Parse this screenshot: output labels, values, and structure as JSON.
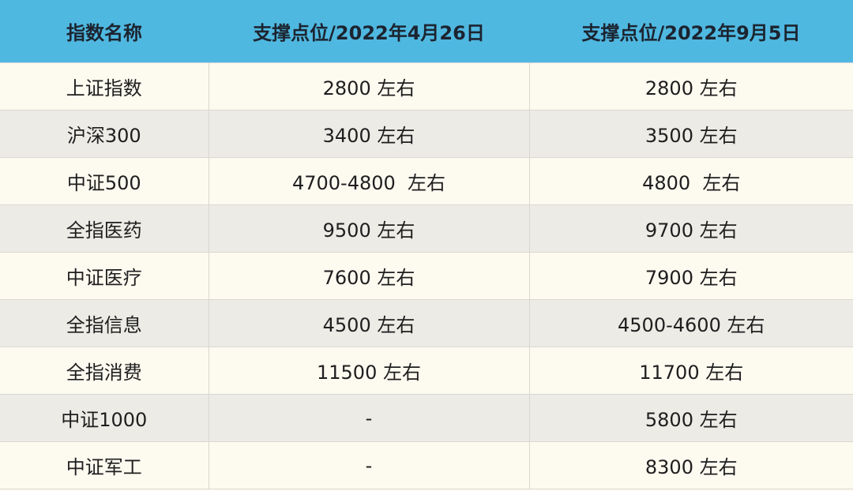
{
  "table": {
    "headers": [
      "指数名称",
      "支撑点位/2022年4月26日",
      "支撑点位/2022年9月5日"
    ],
    "rows": [
      [
        "上证指数",
        "2800 左右",
        "2800 左右"
      ],
      [
        "沪深300",
        "3400 左右",
        "3500 左右"
      ],
      [
        "中证500",
        "4700-4800  左右",
        "4800  左右"
      ],
      [
        "全指医药",
        "9500 左右",
        "9700 左右"
      ],
      [
        "中证医疗",
        "7600 左右",
        "7900 左右"
      ],
      [
        "全指信息",
        "4500 左右",
        "4500-4600 左右"
      ],
      [
        "全指消费",
        "11500 左右",
        "11700 左右"
      ],
      [
        "中证1000",
        "-",
        "5800 左右"
      ],
      [
        "中证军工",
        "-",
        "8300 左右"
      ]
    ]
  },
  "colors": {
    "header": "#4fb8e0",
    "row_light": "#fdfaf0",
    "row_dark": "#ecebe6"
  }
}
